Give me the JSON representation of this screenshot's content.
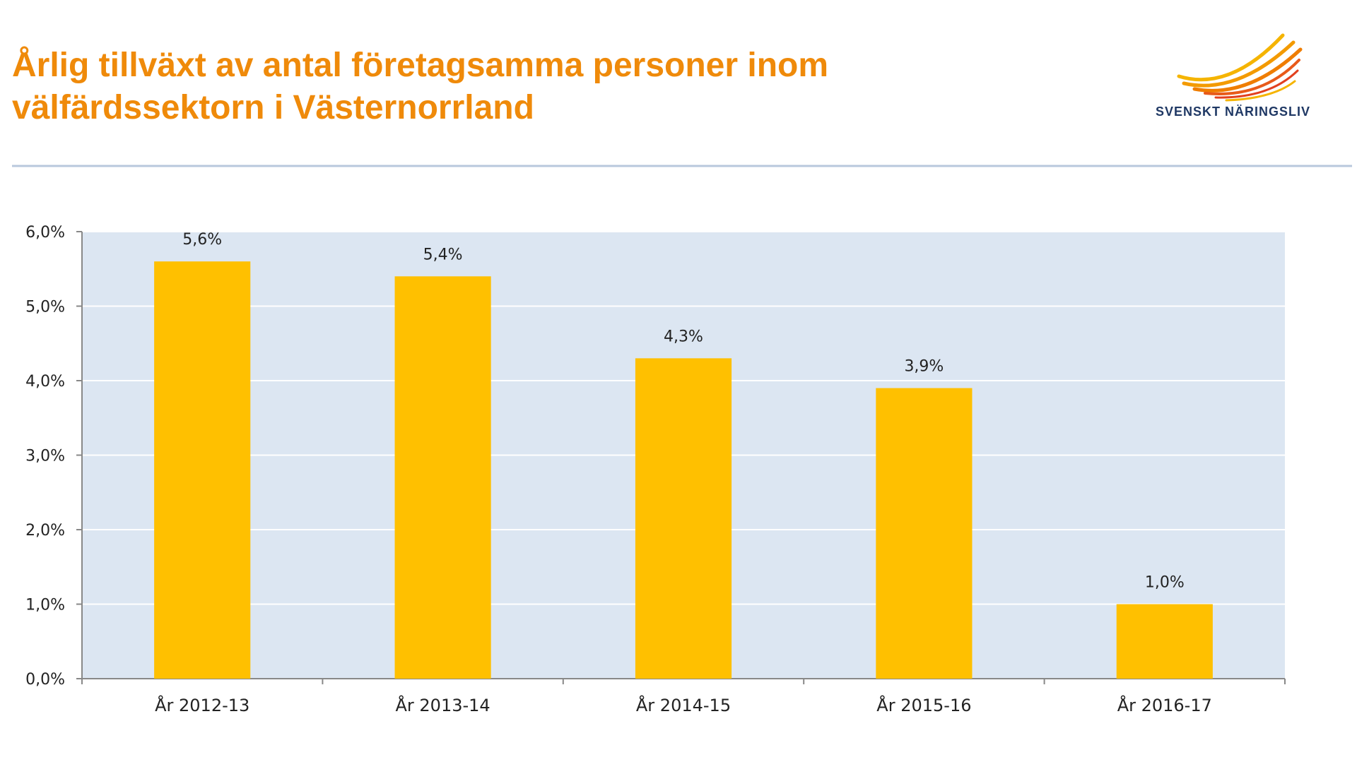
{
  "logo": "SVENSKT NÄRINGSLIV",
  "chart_data": {
    "type": "bar",
    "title": [
      "Årlig tillväxt av antal företagsamma personer inom",
      "välfärdssektorn i Västernorrland"
    ],
    "categories": [
      "År 2012-13",
      "År 2013-14",
      "År 2014-15",
      "År 2015-16",
      "År 2016-17"
    ],
    "values": [
      5.6,
      5.4,
      4.3,
      3.9,
      1.0
    ],
    "value_labels": [
      "5,6%",
      "5,4%",
      "4,3%",
      "3,9%",
      "1,0%"
    ],
    "color": "#ffc000",
    "ylim": [
      0,
      6
    ],
    "yticks": [
      {
        "value": 0,
        "label": "0,0%"
      },
      {
        "value": 1,
        "label": "1,0%"
      },
      {
        "value": 2,
        "label": "2,0%"
      },
      {
        "value": 3,
        "label": "3,0%"
      },
      {
        "value": 4,
        "label": "4,0%"
      },
      {
        "value": 5,
        "label": "5,0%"
      },
      {
        "value": 6,
        "label": "6,0%"
      }
    ],
    "grid": true
  }
}
